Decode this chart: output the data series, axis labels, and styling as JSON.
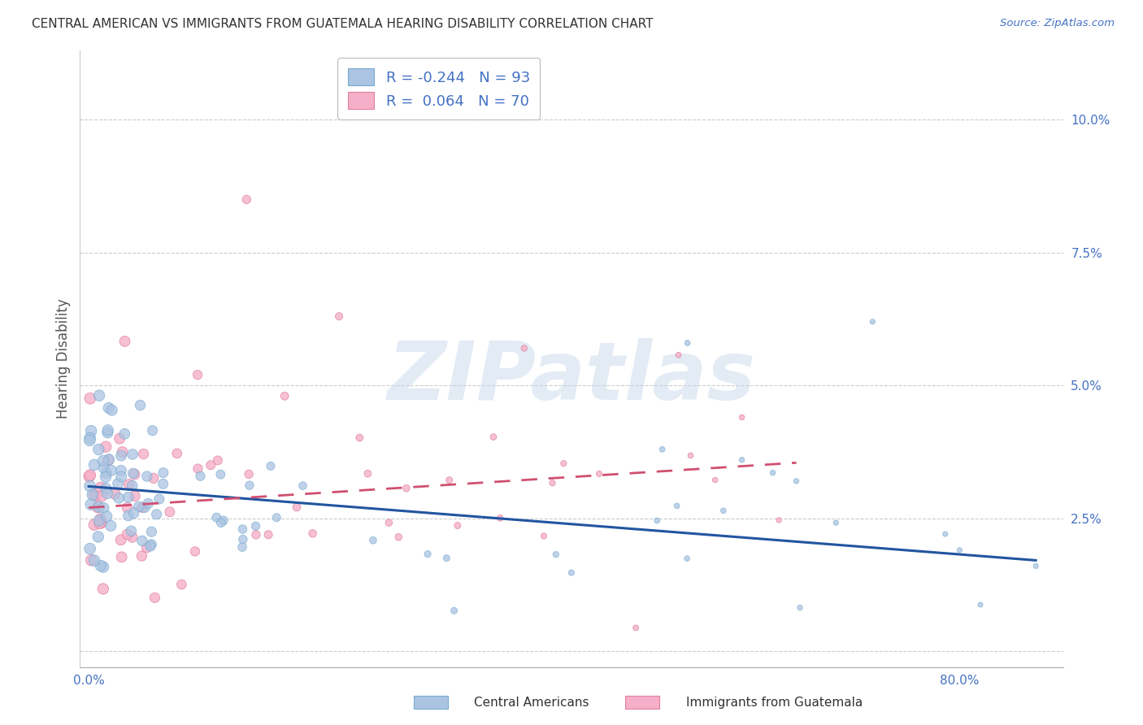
{
  "title": "CENTRAL AMERICAN VS IMMIGRANTS FROM GUATEMALA HEARING DISABILITY CORRELATION CHART",
  "source": "Source: ZipAtlas.com",
  "ylabel": "Hearing Disability",
  "y_ticks": [
    0.0,
    0.025,
    0.05,
    0.075,
    0.1
  ],
  "y_tick_labels": [
    "",
    "2.5%",
    "5.0%",
    "7.5%",
    "10.0%"
  ],
  "x_tick_labels": [
    "0.0%",
    "",
    "",
    "",
    "80.0%"
  ],
  "watermark": "ZIPatlas",
  "background_color": "#ffffff",
  "blue_color": "#aac4e2",
  "blue_edge": "#7aaad0",
  "pink_color": "#f5afc8",
  "pink_edge": "#e080a0",
  "blue_trend_color": "#2255a0",
  "pink_trend_color": "#d05070",
  "axis_tick_color": "#4472c4",
  "legend_label_blue": "R = -0.244   N = 93",
  "legend_label_pink": "R =  0.064   N = 70",
  "bottom_label_blue": "Central Americans",
  "bottom_label_pink": "Immigrants from Guatemala"
}
